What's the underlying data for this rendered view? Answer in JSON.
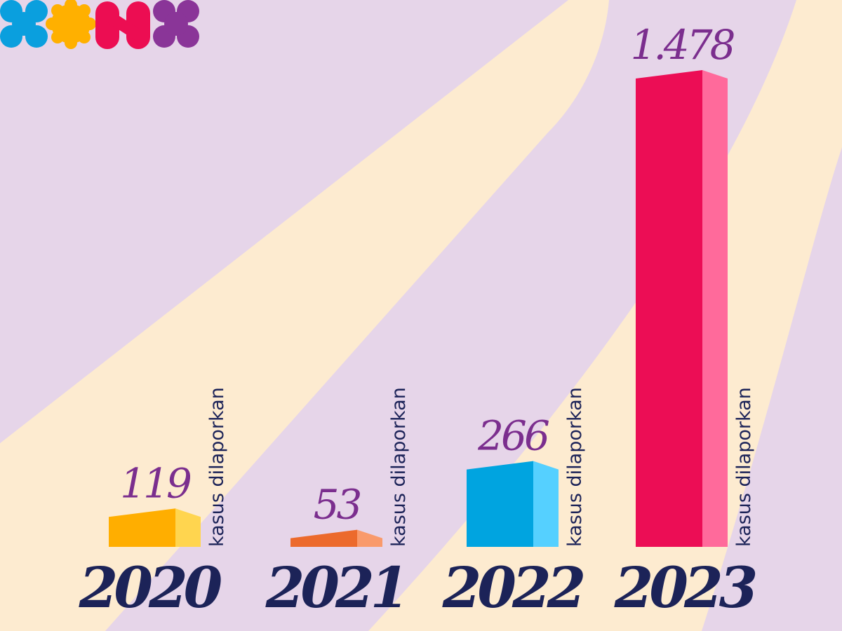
{
  "logo": {
    "shapes": [
      {
        "name": "logo-x-blue",
        "color": "#0A9FDE"
      },
      {
        "name": "logo-sun-yellow",
        "color": "#FFB000"
      },
      {
        "name": "logo-n-pink",
        "color": "#EC0D52"
      },
      {
        "name": "logo-x-purple",
        "color": "#8A3598"
      }
    ]
  },
  "colors": {
    "background": "#E6D5E9",
    "stripes": "#FDEBD0",
    "value_text": "#7B2E8E",
    "year_text": "#1C2358"
  },
  "chart_data": {
    "type": "bar",
    "style": "3d",
    "categories": [
      "2020",
      "2021",
      "2022",
      "2023"
    ],
    "values": [
      119,
      53,
      266,
      1478
    ],
    "value_labels": [
      "119",
      "53",
      "266",
      "1.478"
    ],
    "unit_label": "kasus dilaporkan",
    "bar_colors": [
      {
        "front": "#FFAE00",
        "side": "#FFD54F"
      },
      {
        "front": "#EC6A2C",
        "side": "#F99A6B"
      },
      {
        "front": "#00A4E0",
        "side": "#55D0FF"
      },
      {
        "front": "#EC0D55",
        "side": "#FF6A9B"
      }
    ],
    "title": "",
    "xlabel": "",
    "ylabel": "",
    "ylim": [
      0,
      1478
    ],
    "grid": false,
    "legend": "none"
  }
}
